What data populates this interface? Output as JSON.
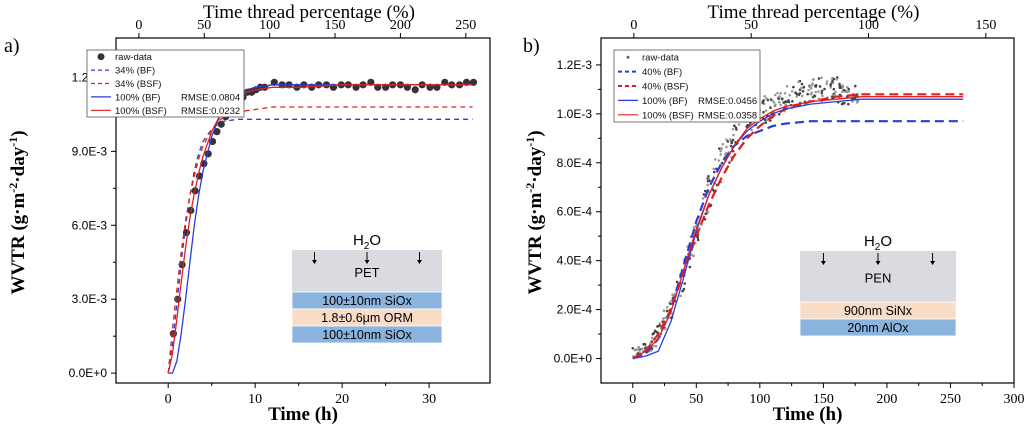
{
  "chart_data": [
    {
      "type": "scatter",
      "panel_label": "a)",
      "xlabel": "Time (h)",
      "ylabel_main": "WVTR (g",
      "ylabel_unit_m": "m",
      "ylabel_unit_day": "day",
      "ylabel_exp": "-2",
      "ylabel_exp2": "-1",
      "ylabel_close": ")",
      "top_xlabel": "Time thread percentage (%)",
      "xlim": [
        -6,
        37
      ],
      "ylim": [
        -0.0004,
        0.0136
      ],
      "top_xlim": [
        -17.5,
        268.5
      ],
      "x_ticks": [
        {
          "v": 0,
          "label": "0"
        },
        {
          "v": 10,
          "label": "10"
        },
        {
          "v": 20,
          "label": "20"
        },
        {
          "v": 30,
          "label": "30"
        }
      ],
      "y_ticks": [
        {
          "v": 0,
          "label": "0.0E+0"
        },
        {
          "v": 0.003,
          "label": "3.0E-3"
        },
        {
          "v": 0.006,
          "label": "6.0E-3"
        },
        {
          "v": 0.009,
          "label": "9.0E-3"
        },
        {
          "v": 0.012,
          "label": "1.2E-2"
        }
      ],
      "top_ticks": [
        {
          "v": 0,
          "label": "0"
        },
        {
          "v": 50,
          "label": "50"
        },
        {
          "v": 100,
          "label": "100"
        },
        {
          "v": 150,
          "label": "150"
        },
        {
          "v": 200,
          "label": "200"
        },
        {
          "v": 250,
          "label": "250"
        }
      ],
      "legend": [
        {
          "label": "raw-data",
          "rmse": "",
          "color": "#333333",
          "style": "dot"
        },
        {
          "label": "34%   (BF)",
          "rmse": "",
          "color": "#2a3dd6",
          "style": "dash"
        },
        {
          "label": "34%   (BSF)",
          "rmse": "",
          "color": "#e02020",
          "style": "dash"
        },
        {
          "label": "100%  (BF)",
          "rmse": "RMSE:0.0804",
          "color": "#2a3dd6",
          "style": "solid"
        },
        {
          "label": "100%  (BSF)",
          "rmse": "RMSE:0.0232",
          "color": "#e02020",
          "style": "solid"
        }
      ],
      "series": [
        {
          "name": "raw-data",
          "kind": "points",
          "color": "#333333",
          "x": [
            0.6,
            1.1,
            1.6,
            2.1,
            2.6,
            3.1,
            3.6,
            4.1,
            4.6,
            5.1,
            5.6,
            6.1,
            6.6,
            7.1,
            7.6,
            8.1,
            8.6,
            9.1,
            9.6,
            10.1,
            10.6,
            11.1,
            12.2,
            13.1,
            13.9,
            14.8,
            15.6,
            16.5,
            17.3,
            18.2,
            19.0,
            19.9,
            20.7,
            21.6,
            22.4,
            23.3,
            24.1,
            25.0,
            25.8,
            26.7,
            27.5,
            28.4,
            29.2,
            30.1,
            30.9,
            31.8,
            32.6,
            33.5,
            34.3,
            35.1
          ],
          "y": [
            0.0016,
            0.003,
            0.0044,
            0.0057,
            0.0066,
            0.0074,
            0.008,
            0.0085,
            0.0089,
            0.0094,
            0.0098,
            0.0101,
            0.0104,
            0.0107,
            0.0109,
            0.0111,
            0.0112,
            0.0114,
            0.0114,
            0.0115,
            0.0116,
            0.0116,
            0.0118,
            0.0117,
            0.0117,
            0.0116,
            0.0117,
            0.0116,
            0.0117,
            0.0117,
            0.0116,
            0.0117,
            0.0117,
            0.0116,
            0.0117,
            0.0118,
            0.0116,
            0.0116,
            0.0117,
            0.0117,
            0.0116,
            0.0115,
            0.0117,
            0.0116,
            0.0116,
            0.0118,
            0.0117,
            0.0117,
            0.0118,
            0.0118
          ]
        },
        {
          "name": "34%   (BF)",
          "kind": "dash",
          "color": "#2a3dd6",
          "x": [
            0,
            0.5,
            1,
            1.5,
            2,
            2.5,
            3,
            3.5,
            4,
            5,
            6,
            8,
            10,
            15,
            20,
            25,
            30,
            35
          ],
          "y": [
            0.0,
            0.0012,
            0.0028,
            0.0045,
            0.006,
            0.0072,
            0.0082,
            0.0089,
            0.0094,
            0.0099,
            0.0102,
            0.0103,
            0.0103,
            0.0103,
            0.0103,
            0.0103,
            0.0103,
            0.0103
          ]
        },
        {
          "name": "34%   (BSF)",
          "kind": "dash",
          "color": "#e02020",
          "x": [
            0,
            0.5,
            1,
            1.5,
            2,
            2.5,
            3,
            3.5,
            4,
            5,
            6,
            8,
            10,
            12,
            15,
            20,
            25,
            30,
            35
          ],
          "y": [
            0.0,
            0.0018,
            0.0034,
            0.0049,
            0.0062,
            0.0072,
            0.008,
            0.0087,
            0.0092,
            0.0099,
            0.0103,
            0.0106,
            0.0107,
            0.0108,
            0.0108,
            0.0108,
            0.0108,
            0.0108,
            0.0108
          ]
        },
        {
          "name": "100%  (BF)",
          "kind": "solid",
          "color": "#2a3dd6",
          "x": [
            0,
            0.5,
            1,
            1.5,
            2,
            2.5,
            3,
            3.5,
            4,
            5,
            6,
            7,
            8,
            9,
            10,
            12,
            15,
            20,
            25,
            30,
            35
          ],
          "y": [
            0.0,
            0.0,
            0.0005,
            0.0016,
            0.003,
            0.0045,
            0.006,
            0.0072,
            0.0082,
            0.0096,
            0.0105,
            0.011,
            0.0113,
            0.0115,
            0.0116,
            0.0117,
            0.0117,
            0.0117,
            0.0117,
            0.0117,
            0.0117
          ]
        },
        {
          "name": "100%  (BSF)",
          "kind": "solid",
          "color": "#e02020",
          "x": [
            0,
            0.5,
            1,
            1.5,
            2,
            2.5,
            3,
            3.5,
            4,
            5,
            6,
            7,
            8,
            9,
            10,
            12,
            15,
            20,
            25,
            30,
            35
          ],
          "y": [
            0.0,
            0.0008,
            0.0022,
            0.0037,
            0.0051,
            0.0063,
            0.0073,
            0.0081,
            0.0088,
            0.0098,
            0.0105,
            0.0109,
            0.0112,
            0.0114,
            0.0115,
            0.0116,
            0.0116,
            0.0117,
            0.0117,
            0.0117,
            0.0117
          ]
        }
      ],
      "inset": {
        "gas": "H",
        "gas_sub": "2",
        "gas_end": "O",
        "substrate": "PET",
        "layers": [
          {
            "label": "100±10nm SiOx",
            "color": "#8ab4de"
          },
          {
            "label": "1.8±0.6μm ORM",
            "color": "#f8dcc6"
          },
          {
            "label": "100±10nm SiOx",
            "color": "#8ab4de"
          }
        ]
      }
    },
    {
      "type": "scatter",
      "panel_label": "b)",
      "xlabel": "Time (h)",
      "ylabel_main": "WVTR (g",
      "ylabel_unit_m": "m",
      "ylabel_unit_day": "day",
      "ylabel_exp": "-2",
      "ylabel_exp2": "-1",
      "ylabel_close": ")",
      "top_xlabel": "Time thread percentage (%)",
      "xlim": [
        -25,
        300
      ],
      "ylim": [
        -0.0001,
        0.00131
      ],
      "top_xlim": [
        -14,
        162
      ],
      "x_ticks": [
        {
          "v": 0,
          "label": "0"
        },
        {
          "v": 50,
          "label": "50"
        },
        {
          "v": 100,
          "label": "100"
        },
        {
          "v": 150,
          "label": "150"
        },
        {
          "v": 200,
          "label": "200"
        },
        {
          "v": 250,
          "label": "250"
        },
        {
          "v": 300,
          "label": "300"
        }
      ],
      "y_ticks": [
        {
          "v": 0,
          "label": "0.0E+0"
        },
        {
          "v": 0.0002,
          "label": "2.0E-4"
        },
        {
          "v": 0.0004,
          "label": "4.0E-4"
        },
        {
          "v": 0.0006,
          "label": "6.0E-4"
        },
        {
          "v": 0.0008,
          "label": "8.0E-4"
        },
        {
          "v": 0.001,
          "label": "1.0E-3"
        },
        {
          "v": 0.0012,
          "label": "1.2E-3"
        }
      ],
      "top_ticks": [
        {
          "v": 0,
          "label": "0"
        },
        {
          "v": 50,
          "label": "50"
        },
        {
          "v": 100,
          "label": "100"
        },
        {
          "v": 150,
          "label": "150"
        }
      ],
      "legend": [
        {
          "label": "raw-data",
          "rmse": "",
          "color": "#666666",
          "style": "dot"
        },
        {
          "label": "40%   (BF)",
          "rmse": "",
          "color": "#2a3dd6",
          "style": "dash"
        },
        {
          "label": "40%   (BSF)",
          "rmse": "",
          "color": "#e02020",
          "style": "dash"
        },
        {
          "label": "100% (BF)",
          "rmse": "RMSE:0.0456",
          "color": "#2a3dd6",
          "style": "solid"
        },
        {
          "label": "100% (BSF)",
          "rmse": "RMSE:0.0358",
          "color": "#e02020",
          "style": "solid"
        }
      ],
      "series": [
        {
          "name": "raw-data",
          "kind": "cloud",
          "color": "#555555",
          "x": [
            0,
            8,
            15,
            22,
            30,
            38,
            45,
            52,
            60,
            68,
            75,
            82,
            90,
            98,
            105,
            112,
            120,
            128,
            135,
            142,
            150,
            158,
            165,
            172,
            178
          ],
          "y": [
            2e-05,
            3e-05,
            6e-05,
            0.00012,
            0.0002,
            0.00031,
            0.00043,
            0.00056,
            0.00068,
            0.00078,
            0.00086,
            0.00093,
            0.00098,
            0.00101,
            0.00102,
            0.00103,
            0.00106,
            0.00108,
            0.00109,
            0.0011,
            0.0011,
            0.00111,
            0.00108,
            0.00107,
            0.00108
          ],
          "spread": [
            2e-05,
            2e-05,
            3e-05,
            4e-05,
            4e-05,
            5e-05,
            5e-05,
            6e-05,
            6e-05,
            6e-05,
            6e-05,
            6e-05,
            5e-05,
            5e-05,
            4e-05,
            4e-05,
            4e-05,
            4e-05,
            4e-05,
            4e-05,
            4e-05,
            4e-05,
            3e-05,
            3e-05,
            3e-05
          ]
        },
        {
          "name": "40%   (BF)",
          "kind": "dash",
          "color": "#2a3dd6",
          "x": [
            0,
            10,
            20,
            30,
            40,
            50,
            60,
            70,
            80,
            90,
            100,
            110,
            120,
            140,
            160,
            180,
            200,
            220,
            240,
            260
          ],
          "y": [
            0.0,
            2e-05,
            8e-05,
            0.0002,
            0.00038,
            0.00056,
            0.0007,
            0.0008,
            0.00087,
            0.00091,
            0.00093,
            0.00095,
            0.00096,
            0.00097,
            0.00097,
            0.00097,
            0.00097,
            0.00097,
            0.00097,
            0.00097
          ]
        },
        {
          "name": "40%   (BSF)",
          "kind": "dash",
          "color": "#e02020",
          "x": [
            0,
            10,
            20,
            30,
            40,
            50,
            60,
            70,
            80,
            90,
            100,
            110,
            120,
            140,
            160,
            180,
            200,
            220,
            240,
            260
          ],
          "y": [
            0.0,
            3e-05,
            0.0001,
            0.0002,
            0.00035,
            0.0005,
            0.00063,
            0.00074,
            0.00083,
            0.0009,
            0.00095,
            0.00099,
            0.00102,
            0.00105,
            0.00107,
            0.00108,
            0.00108,
            0.00108,
            0.00108,
            0.00108
          ]
        },
        {
          "name": "100% (BF)",
          "kind": "solid",
          "color": "#2a3dd6",
          "x": [
            0,
            10,
            20,
            30,
            40,
            50,
            60,
            70,
            80,
            90,
            100,
            110,
            120,
            140,
            160,
            180,
            200,
            220,
            240,
            260
          ],
          "y": [
            0.0,
            1e-05,
            3e-05,
            0.00015,
            0.00033,
            0.00052,
            0.00067,
            0.00078,
            0.00087,
            0.00093,
            0.00097,
            0.001,
            0.00102,
            0.00104,
            0.00105,
            0.00106,
            0.00106,
            0.00106,
            0.00106,
            0.00106
          ]
        },
        {
          "name": "100% (BSF)",
          "kind": "solid",
          "color": "#e02020",
          "x": [
            0,
            10,
            20,
            30,
            40,
            50,
            60,
            70,
            80,
            90,
            100,
            110,
            120,
            140,
            160,
            180,
            200,
            220,
            240,
            260
          ],
          "y": [
            0.0,
            3e-05,
            8e-05,
            0.00019,
            0.00036,
            0.00053,
            0.00067,
            0.00078,
            0.00087,
            0.00094,
            0.00098,
            0.00101,
            0.00103,
            0.00105,
            0.00106,
            0.00107,
            0.00107,
            0.00107,
            0.00107,
            0.00107
          ]
        }
      ],
      "inset": {
        "gas": "H",
        "gas_sub": "2",
        "gas_end": "O",
        "substrate": "PEN",
        "layers": [
          {
            "label": "900nm SiNx",
            "color": "#f8dcc6"
          },
          {
            "label": "20nm AlOx",
            "color": "#8ab4de"
          }
        ]
      }
    }
  ]
}
